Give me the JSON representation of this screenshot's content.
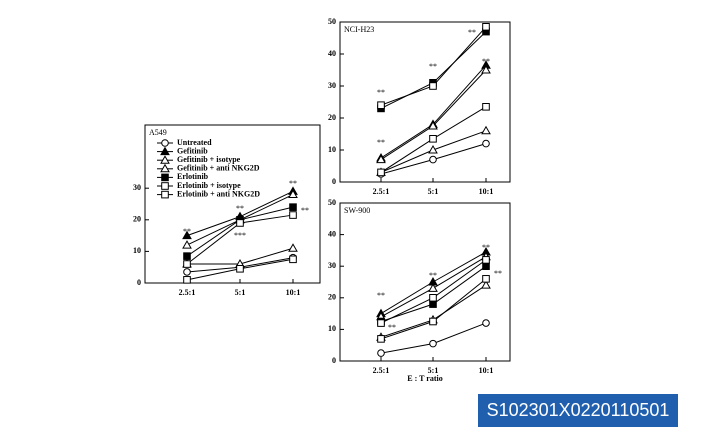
{
  "chart_data": [
    {
      "type": "line",
      "title": "A549",
      "categories": [
        "2.5:1",
        "5:1",
        "10:1"
      ],
      "ylim": [
        0,
        50
      ],
      "yticks": [
        0,
        10,
        20,
        30
      ],
      "legend": true,
      "series": [
        {
          "name": "Untreated",
          "color": "#000000",
          "marker": "circle",
          "filled": false,
          "values": [
            3.5,
            5,
            8
          ]
        },
        {
          "name": "Gefitinib",
          "color": "#000000",
          "marker": "triangle",
          "filled": true,
          "values": [
            15,
            21,
            29
          ]
        },
        {
          "name": "Gefitinib + isotype",
          "color": "#000000",
          "marker": "triangle",
          "filled": false,
          "values": [
            12,
            20,
            28
          ]
        },
        {
          "name": "Gefitinib + anti NKG2D",
          "color": "#000000",
          "marker": "triangle",
          "filled": false,
          "values": [
            6,
            6,
            11
          ]
        },
        {
          "name": "Erlotinib",
          "color": "#000000",
          "marker": "square",
          "filled": true,
          "values": [
            8.5,
            20,
            24
          ]
        },
        {
          "name": "Erlotinib + isotype",
          "color": "#000000",
          "marker": "square",
          "filled": false,
          "values": [
            6,
            19,
            21.5
          ]
        },
        {
          "name": "Erlotinib + anti NKG2D",
          "color": "#000000",
          "marker": "square",
          "filled": false,
          "values": [
            1,
            4.5,
            7.5
          ]
        }
      ],
      "annotations": [
        "**",
        "**",
        "**",
        "***",
        "**"
      ]
    },
    {
      "type": "line",
      "title": "NCI-H23",
      "categories": [
        "2.5:1",
        "5:1",
        "10:1"
      ],
      "ylim": [
        0,
        50
      ],
      "yticks": [
        0,
        10,
        20,
        30,
        40,
        50
      ],
      "legend": false,
      "series": [
        {
          "color": "#000000",
          "marker": "circle",
          "filled": false,
          "values": [
            2.5,
            7,
            12
          ]
        },
        {
          "color": "#000000",
          "marker": "triangle",
          "filled": true,
          "values": [
            7.5,
            18,
            36.5
          ]
        },
        {
          "color": "#000000",
          "marker": "triangle",
          "filled": false,
          "values": [
            7,
            17.5,
            35
          ]
        },
        {
          "color": "#000000",
          "marker": "triangle",
          "filled": false,
          "values": [
            3,
            10,
            16
          ]
        },
        {
          "color": "#000000",
          "marker": "square",
          "filled": true,
          "values": [
            23,
            31,
            47
          ]
        },
        {
          "color": "#000000",
          "marker": "square",
          "filled": false,
          "values": [
            24,
            30,
            48.5
          ]
        },
        {
          "color": "#000000",
          "marker": "square",
          "filled": false,
          "values": [
            3,
            13.5,
            23.5
          ]
        }
      ],
      "annotations": [
        "**",
        "**",
        "**",
        "**",
        "**"
      ]
    },
    {
      "type": "line",
      "title": "SW-900",
      "categories": [
        "2.5:1",
        "5:1",
        "10:1"
      ],
      "ylim": [
        0,
        50
      ],
      "yticks": [
        0,
        10,
        20,
        30,
        40,
        50
      ],
      "legend": false,
      "xlabel": "E : T ratio",
      "series": [
        {
          "color": "#000000",
          "marker": "circle",
          "filled": false,
          "values": [
            2.5,
            5.5,
            12
          ]
        },
        {
          "color": "#000000",
          "marker": "triangle",
          "filled": true,
          "values": [
            15,
            25,
            34.5
          ]
        },
        {
          "color": "#000000",
          "marker": "triangle",
          "filled": false,
          "values": [
            14,
            23,
            33
          ]
        },
        {
          "color": "#000000",
          "marker": "triangle",
          "filled": false,
          "values": [
            7.5,
            13,
            24
          ]
        },
        {
          "color": "#000000",
          "marker": "square",
          "filled": true,
          "values": [
            12.5,
            18,
            30
          ]
        },
        {
          "color": "#000000",
          "marker": "square",
          "filled": false,
          "values": [
            12,
            20,
            32
          ]
        },
        {
          "color": "#000000",
          "marker": "square",
          "filled": false,
          "values": [
            7,
            12.5,
            26
          ]
        }
      ],
      "annotations": [
        "**",
        "**",
        "**",
        "**",
        "**"
      ]
    }
  ],
  "badge": "S102301X0220110501"
}
